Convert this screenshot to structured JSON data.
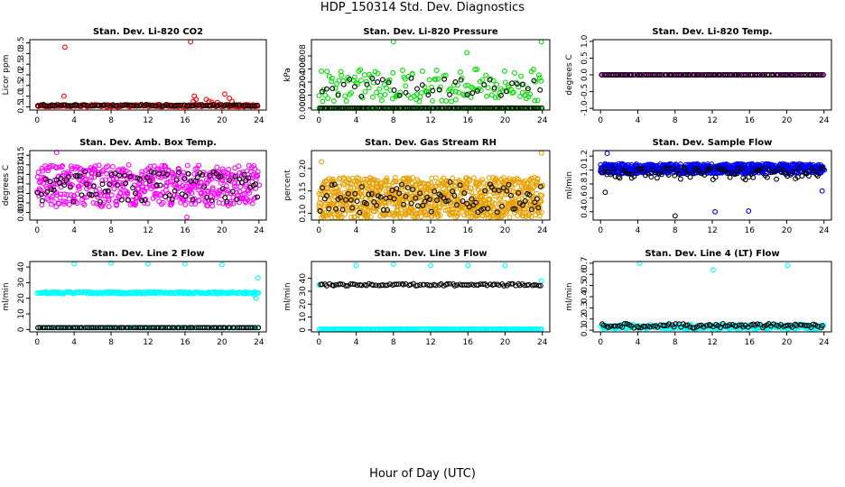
{
  "page": {
    "title": "HDP_150314  Std. Dev. Diagnostics",
    "x_caption": "Hour of Day (UTC)"
  },
  "chart_data": [
    {
      "type": "scatter",
      "title": "Stan. Dev. Li-820 CO2",
      "ylabel": "Licor ppm",
      "xlim": [
        -0.8,
        24.8
      ],
      "ylim": [
        0.35,
        3.65
      ],
      "x_ticks": [
        0,
        4,
        8,
        12,
        16,
        20,
        24
      ],
      "y_ticks": [
        0.5,
        1.0,
        1.5,
        2.0,
        2.5,
        3.0,
        3.5
      ],
      "y_tick_labels": [
        "0.5",
        "1.0",
        "1.5",
        "2.0",
        "2.5",
        "3.0",
        "3.5"
      ],
      "series": [
        {
          "color": "#ff0000",
          "base": 0.55,
          "spread": 0.05,
          "n": 180,
          "outliers": [
            [
              3,
              3.3
            ],
            [
              2.9,
              1.0
            ],
            [
              16.6,
              3.55
            ],
            [
              17,
              1.0
            ],
            [
              17.2,
              0.85
            ],
            [
              18.3,
              0.85
            ],
            [
              18.6,
              0.75
            ],
            [
              18.9,
              0.72
            ],
            [
              20.3,
              1.1
            ],
            [
              20.8,
              0.9
            ],
            [
              21.1,
              0.75
            ],
            [
              16.9,
              0.75
            ],
            [
              19.5,
              0.7
            ]
          ]
        },
        {
          "color": "#000000",
          "base": 0.57,
          "spread": 0.04,
          "n": 90,
          "outliers": []
        }
      ]
    },
    {
      "type": "scatter",
      "title": "Stan. Dev. Li-820 Pressure",
      "ylabel": "kPa",
      "xlim": [
        -0.8,
        24.8
      ],
      "ylim": [
        -0.0003,
        0.0105
      ],
      "x_ticks": [
        0,
        4,
        8,
        12,
        16,
        20,
        24
      ],
      "y_ticks": [
        0,
        0.002,
        0.004,
        0.006,
        0.008
      ],
      "y_tick_labels": [
        "0.000",
        "0.002",
        "0.004",
        "0.006",
        "0.008"
      ],
      "series": [
        {
          "color": "#00dd00",
          "base": 0.0,
          "spread": 0.0,
          "n": 240,
          "outliers": []
        },
        {
          "color": "#00dd00",
          "base": 0.0035,
          "spread": 0.0025,
          "n": 160,
          "outliers": [
            [
              8,
              0.0102
            ],
            [
              23.9,
              0.0102
            ],
            [
              15.9,
              0.0085
            ]
          ]
        },
        {
          "color": "#000000",
          "base": 0.0,
          "spread": 0.0,
          "n": 96,
          "outliers": []
        },
        {
          "color": "#000000",
          "base": 0.0032,
          "spread": 0.0014,
          "n": 40,
          "outliers": []
        }
      ]
    },
    {
      "type": "scatter",
      "title": "Stan. Dev. Li-820 Temp.",
      "ylabel": "degrees C",
      "xlim": [
        -0.8,
        24.8
      ],
      "ylim": [
        -1.05,
        1.05
      ],
      "x_ticks": [
        0,
        4,
        8,
        12,
        16,
        20,
        24
      ],
      "y_ticks": [
        -1.0,
        -0.5,
        0.0,
        0.5,
        1.0
      ],
      "y_tick_labels": [
        "-1.0",
        "-0.5",
        "0.0",
        "0.5",
        "1.0"
      ],
      "series": [
        {
          "color": "#ff00ff",
          "base": 0.0,
          "spread": 0.0,
          "n": 120,
          "outliers": []
        },
        {
          "color": "#000000",
          "base": 0.0,
          "spread": 0.0,
          "n": 96,
          "outliers": []
        }
      ]
    },
    {
      "type": "scatter",
      "title": "Stan. Dev. Amb. Box Temp.",
      "ylabel": "degrees C",
      "xlim": [
        -0.8,
        24.8
      ],
      "ylim": [
        0.082,
        0.155
      ],
      "x_ticks": [
        0,
        4,
        8,
        12,
        16,
        20,
        24
      ],
      "y_ticks": [
        0.09,
        0.1,
        0.11,
        0.12,
        0.13,
        0.14,
        0.15
      ],
      "y_tick_labels": [
        "0.09",
        "0.10",
        "0.11",
        "0.12",
        "0.13",
        "0.14",
        "0.15"
      ],
      "series": [
        {
          "color": "#ff00ff",
          "base": 0.118,
          "spread": 0.022,
          "n": 520,
          "outliers": [
            [
              16.2,
              0.085
            ],
            [
              2.1,
              0.153
            ]
          ]
        },
        {
          "color": "#000000",
          "base": 0.117,
          "spread": 0.016,
          "n": 96,
          "outliers": []
        }
      ]
    },
    {
      "type": "scatter",
      "title": "Stan. Dev. Gas Stream RH",
      "ylabel": "percent",
      "xlim": [
        -0.8,
        24.8
      ],
      "ylim": [
        0.085,
        0.24
      ],
      "x_ticks": [
        0,
        4,
        8,
        12,
        16,
        20,
        24
      ],
      "y_ticks": [
        0.1,
        0.15,
        0.2
      ],
      "y_tick_labels": [
        "0.10",
        "0.15",
        "0.20"
      ],
      "series": [
        {
          "color": "#e8a000",
          "base": 0.135,
          "spread": 0.045,
          "n": 900,
          "outliers": [
            [
              23.9,
              0.235
            ],
            [
              0.3,
              0.215
            ]
          ]
        },
        {
          "color": "#000000",
          "base": 0.135,
          "spread": 0.035,
          "n": 96,
          "outliers": []
        }
      ]
    },
    {
      "type": "scatter",
      "title": "Stan. Dev. Sample Flow",
      "ylabel": "ml/min",
      "xlim": [
        -0.8,
        24.8
      ],
      "ylim": [
        0.28,
        1.28
      ],
      "x_ticks": [
        0,
        4,
        8,
        12,
        16,
        20,
        24
      ],
      "y_ticks": [
        0.4,
        0.6,
        0.8,
        1.0,
        1.2
      ],
      "y_tick_labels": [
        "0.4",
        "0.6",
        "0.8",
        "1.0",
        "1.2"
      ],
      "series": [
        {
          "color": "#0000ee",
          "base": 1.02,
          "spread": 0.07,
          "n": 720,
          "outliers": [
            [
              12.3,
              0.4
            ],
            [
              15.9,
              0.41
            ],
            [
              23.8,
              0.7
            ],
            [
              0.7,
              1.24
            ]
          ]
        },
        {
          "color": "#000000",
          "base": 0.95,
          "spread": 0.09,
          "n": 96,
          "outliers": [
            [
              8,
              0.34
            ],
            [
              0.5,
              0.68
            ]
          ]
        }
      ]
    },
    {
      "type": "scatter",
      "title": "Stan. Dev. Line 2 Flow",
      "ylabel": "ml/min",
      "xlim": [
        -0.8,
        24.8
      ],
      "ylim": [
        -1.5,
        43.5
      ],
      "x_ticks": [
        0,
        4,
        8,
        12,
        16,
        20,
        24
      ],
      "y_ticks": [
        0,
        10,
        20,
        30,
        40
      ],
      "y_tick_labels": [
        "0",
        "10",
        "20",
        "30",
        "40"
      ],
      "series": [
        {
          "color": "#00ffff",
          "base": 23.5,
          "spread": 0.6,
          "n": 230,
          "outliers": [
            [
              4,
              42
            ],
            [
              8,
              42.5
            ],
            [
              12,
              42
            ],
            [
              16,
              42
            ],
            [
              20,
              41.5
            ],
            [
              23.9,
              33
            ],
            [
              23.7,
              20
            ],
            [
              23.5,
              22
            ]
          ]
        },
        {
          "color": "#00ffff",
          "base": 1.2,
          "spread": 0.0,
          "n": 96,
          "outliers": []
        },
        {
          "color": "#000000",
          "base": 1.2,
          "spread": 0.0,
          "n": 96,
          "outliers": []
        }
      ]
    },
    {
      "type": "scatter",
      "title": "Stan. Dev. Line 3 Flow",
      "ylabel": "ml/min",
      "xlim": [
        -0.8,
        24.8
      ],
      "ylim": [
        -1.5,
        53
      ],
      "x_ticks": [
        0,
        4,
        8,
        12,
        16,
        20,
        24
      ],
      "y_ticks": [
        0,
        10,
        20,
        30,
        40
      ],
      "y_tick_labels": [
        "0",
        "10",
        "20",
        "30",
        "40"
      ],
      "series": [
        {
          "color": "#00ffff",
          "base": 0.6,
          "spread": 0.0,
          "n": 220,
          "outliers": [
            [
              4,
              50
            ],
            [
              8,
              51
            ],
            [
              12,
              50
            ],
            [
              16,
              50
            ],
            [
              20,
              50
            ],
            [
              23.9,
              38
            ],
            [
              0,
              35
            ]
          ]
        },
        {
          "color": "#000000",
          "base": 35,
          "spread": 0.8,
          "n": 96,
          "outliers": []
        }
      ]
    },
    {
      "type": "scatter",
      "title": "Stan. Dev. Line 4 (LT) Flow",
      "ylabel": "ml/min",
      "xlim": [
        -0.8,
        24.8
      ],
      "ylim": [
        0.085,
        0.715
      ],
      "x_ticks": [
        0,
        4,
        8,
        12,
        16,
        20,
        24
      ],
      "y_ticks": [
        0.1,
        0.2,
        0.3,
        0.4,
        0.5,
        0.6,
        0.7
      ],
      "y_tick_labels": [
        "0.1",
        "0.2",
        "0.3",
        "0.4",
        "0.5",
        "0.6",
        "0.7"
      ],
      "series": [
        {
          "color": "#00ffff",
          "base": 0.13,
          "spread": 0.02,
          "n": 260,
          "outliers": [
            [
              4.2,
              0.7
            ],
            [
              12.1,
              0.64
            ],
            [
              20.1,
              0.68
            ]
          ]
        },
        {
          "color": "#000000",
          "base": 0.14,
          "spread": 0.02,
          "n": 96,
          "outliers": []
        }
      ]
    }
  ]
}
